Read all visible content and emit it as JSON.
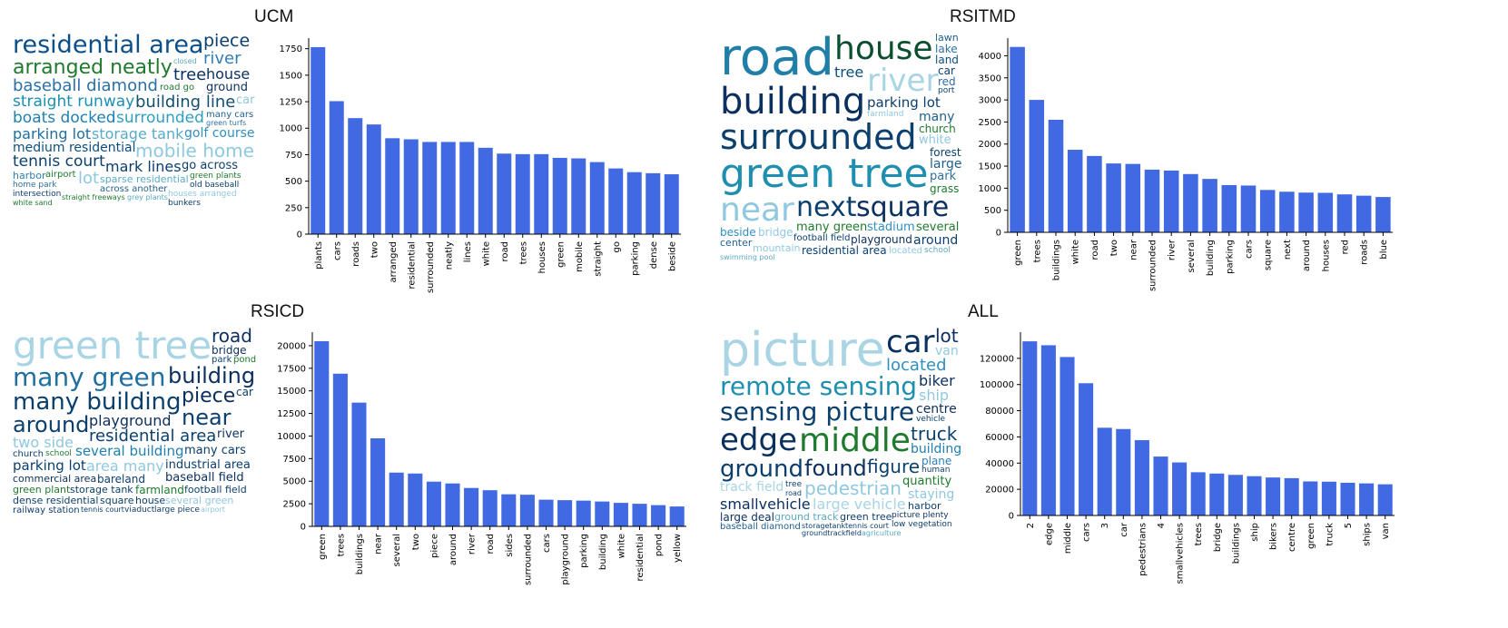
{
  "colors": {
    "bar": "#4169e1",
    "axis": "#000000"
  },
  "panels": [
    {
      "title": "UCM",
      "wordcloud": [
        [
          "residential area",
          27,
          "#0b4f8a"
        ],
        [
          "arranged neatly",
          22,
          "#1f7a2e"
        ],
        [
          "baseball diamond",
          18,
          "#2a6fa8"
        ],
        [
          "straight runway",
          17,
          "#1a8fb0"
        ],
        [
          "building line",
          18,
          "#134f6e"
        ],
        [
          "piece",
          19,
          "#0b3f6e"
        ],
        [
          "river",
          18,
          "#2f7fb8"
        ],
        [
          "tree",
          18,
          "#0b2f5e"
        ],
        [
          "boats docked",
          17,
          "#1f7fb0"
        ],
        [
          "surrounded",
          17,
          "#2f9fc0"
        ],
        [
          "parking lot",
          16,
          "#1f6fa0"
        ],
        [
          "storage tank",
          16,
          "#5aaac8"
        ],
        [
          "house",
          16,
          "#0b2f5e"
        ],
        [
          "medium residential",
          14,
          "#0b4f7e"
        ],
        [
          "golf course",
          14,
          "#2f8fc0"
        ],
        [
          "mobile home",
          20,
          "#8fc8e0"
        ],
        [
          "tennis court",
          17,
          "#0b3f6e"
        ],
        [
          "mark lines",
          16,
          "#0b3f6e"
        ],
        [
          "ground",
          13,
          "#0b2f5e"
        ],
        [
          "go across",
          13,
          "#0b3f6e"
        ],
        [
          "road go",
          10,
          "#1f7a2e"
        ],
        [
          "many cars",
          10,
          "#1f5f8e"
        ],
        [
          "harbor",
          11,
          "#2f7fb8"
        ],
        [
          "airport",
          10,
          "#1f7a2e"
        ],
        [
          "lot",
          18,
          "#8fc8e0"
        ],
        [
          "sparse residential",
          11,
          "#5aaac8"
        ],
        [
          "across another",
          10,
          "#1f5f8e"
        ],
        [
          "green plants",
          9,
          "#1f7a2e"
        ],
        [
          "home park",
          9,
          "#2f6f9e"
        ],
        [
          "old baseball",
          9,
          "#0b3f6e"
        ],
        [
          "intersection",
          9,
          "#0b3f6e"
        ],
        [
          "houses arranged",
          9,
          "#8fc8e0"
        ],
        [
          "green turfs",
          8,
          "#2f6f9e"
        ],
        [
          "straight freeways",
          8,
          "#1f7a2e"
        ],
        [
          "grey plants",
          8,
          "#5aaac8"
        ],
        [
          "white sand",
          8,
          "#1f7a2e"
        ],
        [
          "bunkers",
          9,
          "#0b3f6e"
        ],
        [
          "closed",
          8,
          "#5aaac8"
        ],
        [
          "car",
          13,
          "#8fc8e0"
        ]
      ],
      "chart_data": {
        "type": "bar",
        "categories": [
          "plants",
          "cars",
          "roads",
          "two",
          "arranged",
          "residential",
          "surrounded",
          "neatly",
          "lines",
          "white",
          "road",
          "trees",
          "houses",
          "green",
          "mobile",
          "straight",
          "go",
          "parking",
          "dense",
          "beside"
        ],
        "values": [
          1765,
          1255,
          1095,
          1035,
          905,
          895,
          870,
          870,
          870,
          815,
          760,
          755,
          755,
          720,
          715,
          680,
          620,
          585,
          575,
          565
        ],
        "ylim": [
          0,
          1850
        ],
        "yticks": [
          0,
          250,
          500,
          750,
          1000,
          1250,
          1500,
          1750
        ]
      }
    },
    {
      "title": "RSITMD",
      "wordcloud": [
        [
          "road",
          56,
          "#1f7fa8"
        ],
        [
          "building",
          40,
          "#0b2f5e"
        ],
        [
          "surrounded",
          38,
          "#0b3f6e"
        ],
        [
          "green tree",
          44,
          "#1f8fb0"
        ],
        [
          "house",
          36,
          "#0b4f2e"
        ],
        [
          "river",
          34,
          "#a8d4e4"
        ],
        [
          "near",
          36,
          "#8fc8e0"
        ],
        [
          "next",
          30,
          "#0b3f6e"
        ],
        [
          "square",
          30,
          "#0b2f5e"
        ],
        [
          "parking lot",
          15,
          "#0b3f6e"
        ],
        [
          "many green",
          13,
          "#1f7a2e"
        ],
        [
          "many",
          14,
          "#1f5f8e"
        ],
        [
          "stadium",
          13,
          "#2f8fc0"
        ],
        [
          "church",
          12,
          "#1f7a2e"
        ],
        [
          "tree",
          16,
          "#0b4f7e"
        ],
        [
          "white",
          13,
          "#8fc8e0"
        ],
        [
          "several",
          13,
          "#1f7a2e"
        ],
        [
          "forest",
          12,
          "#0b3f6e"
        ],
        [
          "lawn",
          11,
          "#1f5f8e"
        ],
        [
          "lake",
          12,
          "#2f6f9e"
        ],
        [
          "large",
          14,
          "#1f5f8e"
        ],
        [
          "beside",
          12,
          "#2f8fc0"
        ],
        [
          "land",
          12,
          "#0b4f7e"
        ],
        [
          "bridge",
          12,
          "#8fc8e0"
        ],
        [
          "football field",
          10,
          "#0b3f6e"
        ],
        [
          "playground",
          12,
          "#0b2f5e"
        ],
        [
          "around",
          14,
          "#0b3f6e"
        ],
        [
          "park",
          13,
          "#2f6f9e"
        ],
        [
          "grass",
          12,
          "#1f7a2e"
        ],
        [
          "car",
          12,
          "#0b3f6e"
        ],
        [
          "center",
          11,
          "#1f5f8e"
        ],
        [
          "mountain",
          11,
          "#8fc8e0"
        ],
        [
          "red",
          12,
          "#2f6f9e"
        ],
        [
          "residential area",
          12,
          "#0b3f6e"
        ],
        [
          "port",
          9,
          "#0b3f6e"
        ],
        [
          "farmland",
          9,
          "#8fc8e0"
        ],
        [
          "located",
          10,
          "#8fc8e0"
        ],
        [
          "school",
          9,
          "#5aaac8"
        ],
        [
          "swimming pool",
          8,
          "#5aaac8"
        ]
      ],
      "chart_data": {
        "type": "bar",
        "categories": [
          "green",
          "trees",
          "buildings",
          "white",
          "road",
          "two",
          "near",
          "surrounded",
          "river",
          "several",
          "building",
          "parking",
          "cars",
          "square",
          "next",
          "around",
          "houses",
          "red",
          "roads",
          "blue"
        ],
        "values": [
          4200,
          3000,
          2550,
          1870,
          1730,
          1560,
          1550,
          1420,
          1400,
          1320,
          1210,
          1070,
          1060,
          960,
          920,
          900,
          895,
          860,
          830,
          800
        ],
        "ylim": [
          0,
          4400
        ],
        "yticks": [
          0,
          500,
          1000,
          1500,
          2000,
          2500,
          3000,
          3500,
          4000
        ]
      }
    },
    {
      "title": "RSICD",
      "wordcloud": [
        [
          "green tree",
          42,
          "#a8d4e4"
        ],
        [
          "many green",
          28,
          "#1f6fa0"
        ],
        [
          "many building",
          26,
          "#0b3f6e"
        ],
        [
          "building",
          24,
          "#0b2f5e"
        ],
        [
          "around",
          24,
          "#0b3f6e"
        ],
        [
          "piece",
          22,
          "#0b2f5e"
        ],
        [
          "near",
          24,
          "#0b3f6e"
        ],
        [
          "road",
          20,
          "#0b2f5e"
        ],
        [
          "residential area",
          18,
          "#0b3f6e"
        ],
        [
          "playground",
          16,
          "#0b2f5e"
        ],
        [
          "two side",
          16,
          "#8fc8e0"
        ],
        [
          "several building",
          15,
          "#1f7fb0"
        ],
        [
          "parking lot",
          15,
          "#0b3f6e"
        ],
        [
          "area many",
          16,
          "#8fc8e0"
        ],
        [
          "industrial area",
          13,
          "#0b3f6e"
        ],
        [
          "baseball field",
          13,
          "#0b2f5e"
        ],
        [
          "many cars",
          13,
          "#0b3f6e"
        ],
        [
          "bridge",
          12,
          "#0b2f5e"
        ],
        [
          "commercial area",
          11,
          "#0b2f5e"
        ],
        [
          "bareland",
          12,
          "#0b3f6e"
        ],
        [
          "green plant",
          11,
          "#1f7a2e"
        ],
        [
          "storage tank",
          11,
          "#0b3f6e"
        ],
        [
          "farmland",
          12,
          "#1f7a2e"
        ],
        [
          "dense residential",
          11,
          "#0b3f6e"
        ],
        [
          "river",
          13,
          "#0b2f5e"
        ],
        [
          "car",
          12,
          "#0b3f6e"
        ],
        [
          "football field",
          11,
          "#0b3f6e"
        ],
        [
          "square",
          11,
          "#0b3f6e"
        ],
        [
          "house",
          11,
          "#0b3f6e"
        ],
        [
          "several green",
          11,
          "#8fc8e0"
        ],
        [
          "park",
          10,
          "#0b3f6e"
        ],
        [
          "church",
          10,
          "#0b3f6e"
        ],
        [
          "railway station",
          10,
          "#0b3f6e"
        ],
        [
          "pond",
          10,
          "#1f7a2e"
        ],
        [
          "tennis court",
          8,
          "#0b3f6e"
        ],
        [
          "school",
          9,
          "#1f7a2e"
        ],
        [
          "viaduct",
          9,
          "#0b3f6e"
        ],
        [
          "large piece",
          9,
          "#0b3f6e"
        ],
        [
          "airport",
          8,
          "#8fc8e0"
        ]
      ],
      "chart_data": {
        "type": "bar",
        "categories": [
          "green",
          "trees",
          "buildings",
          "near",
          "several",
          "two",
          "piece",
          "around",
          "river",
          "road",
          "sides",
          "surrounded",
          "cars",
          "playground",
          "parking",
          "building",
          "white",
          "residential",
          "pond",
          "yellow"
        ],
        "values": [
          20500,
          16900,
          13700,
          9750,
          5950,
          5850,
          4950,
          4750,
          4250,
          4000,
          3550,
          3500,
          2950,
          2900,
          2850,
          2750,
          2600,
          2500,
          2350,
          2200
        ],
        "ylim": [
          0,
          21500
        ],
        "yticks": [
          0,
          2500,
          5000,
          7500,
          10000,
          12500,
          15000,
          17500,
          20000
        ]
      }
    },
    {
      "title": "ALL",
      "wordcloud": [
        [
          "picture",
          52,
          "#a8d4e4"
        ],
        [
          "remote sensing",
          28,
          "#1f8fb0"
        ],
        [
          "sensing picture",
          28,
          "#0b3f6e"
        ],
        [
          "edge",
          34,
          "#0b2f5e"
        ],
        [
          "middle",
          36,
          "#1f7a2e"
        ],
        [
          "car",
          34,
          "#0b2f5e"
        ],
        [
          "ground",
          26,
          "#0b3f6e"
        ],
        [
          "found",
          24,
          "#0b2f5e"
        ],
        [
          "truck",
          20,
          "#0b3f6e"
        ],
        [
          "figure",
          20,
          "#0b3f6e"
        ],
        [
          "pedestrian",
          20,
          "#8fc8e0"
        ],
        [
          "located",
          18,
          "#2f8fc0"
        ],
        [
          "lot",
          20,
          "#0b2f5e"
        ],
        [
          "biker",
          16,
          "#0b2f5e"
        ],
        [
          "smallvehicle",
          16,
          "#0b2f5e"
        ],
        [
          "ship",
          16,
          "#8fc8e0"
        ],
        [
          "large vehicle",
          16,
          "#a8d4e4"
        ],
        [
          "building",
          14,
          "#1f7fb0"
        ],
        [
          "track field",
          14,
          "#a8d4e4"
        ],
        [
          "centre",
          14,
          "#0b2f5e"
        ],
        [
          "van",
          14,
          "#8fc8e0"
        ],
        [
          "quantity",
          13,
          "#1f7a2e"
        ],
        [
          "staying",
          14,
          "#8fc8e0"
        ],
        [
          "plane",
          12,
          "#2f7fb8"
        ],
        [
          "large deal",
          12,
          "#0b2f5e"
        ],
        [
          "harbor",
          11,
          "#0b3f6e"
        ],
        [
          "ground track",
          11,
          "#5aaac8"
        ],
        [
          "green tree",
          11,
          "#0b3f6e"
        ],
        [
          "baseball diamond",
          10,
          "#1f5f8e"
        ],
        [
          "picture plenty",
          9,
          "#0b2f5e"
        ],
        [
          "low vegetation",
          9,
          "#0b3f6e"
        ],
        [
          "vehicle",
          9,
          "#0b3f6e"
        ],
        [
          "human",
          9,
          "#0b3f6e"
        ],
        [
          "tree",
          9,
          "#0b3f6e"
        ],
        [
          "storagetank",
          8,
          "#0b3f6e"
        ],
        [
          "groundtrackfield",
          8,
          "#0b3f6e"
        ],
        [
          "road",
          8,
          "#0b3f6e"
        ],
        [
          "tennis court",
          8,
          "#0b3f6e"
        ],
        [
          "agriculture",
          8,
          "#5aaac8"
        ]
      ],
      "chart_data": {
        "type": "bar",
        "categories": [
          "2",
          "edge",
          "middle",
          "cars",
          "3",
          "car",
          "pedestrians",
          "4",
          "smallvehicles",
          "trees",
          "bridge",
          "buildings",
          "ship",
          "bikers",
          "centre",
          "green",
          "truck",
          "5",
          "ships",
          "van"
        ],
        "values": [
          133000,
          130000,
          121000,
          101000,
          67000,
          66000,
          57500,
          45000,
          40500,
          33000,
          32000,
          31000,
          30000,
          29000,
          28500,
          26000,
          25800,
          25000,
          24500,
          23800
        ],
        "ylim": [
          0,
          140000
        ],
        "yticks": [
          0,
          20000,
          40000,
          60000,
          80000,
          100000,
          120000
        ]
      }
    }
  ]
}
